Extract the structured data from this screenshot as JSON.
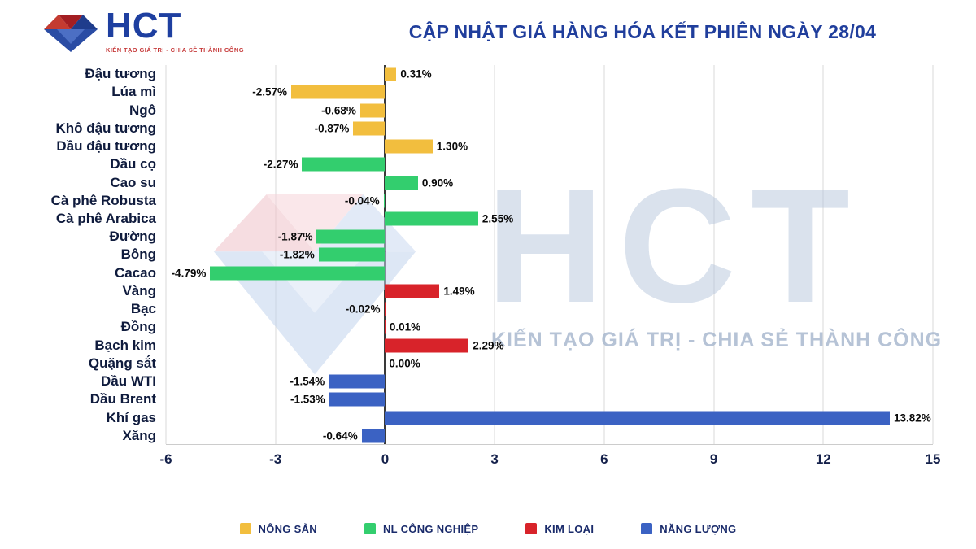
{
  "header": {
    "logo_text": "HCT",
    "logo_tagline": "KIẾN TẠO GIÁ TRỊ - CHIA SẺ THÀNH CÔNG",
    "title": "CẬP NHẬT GIÁ HÀNG HÓA KẾT PHIÊN NGÀY 28/04"
  },
  "watermark": {
    "text": "HCT",
    "tagline": "KIẾN TẠO GIÁ TRỊ - CHIA SẺ THÀNH CÔNG"
  },
  "chart_data": {
    "type": "bar",
    "orientation": "horizontal",
    "title": "CẬP NHẬT GIÁ HÀNG HÓA KẾT PHIÊN NGÀY 28/04",
    "unit": "%",
    "xlim": [
      -6,
      15
    ],
    "x_ticks": [
      "-6",
      "-3",
      "0",
      "3",
      "6",
      "9",
      "12",
      "15"
    ],
    "x_tick_values": [
      -6,
      -3,
      0,
      3,
      6,
      9,
      12,
      15
    ],
    "grid": true,
    "legend_position": "bottom",
    "group_colors": {
      "nong_san": "#F2BE3E",
      "cong_nghiep": "#33CE6E",
      "kim_loai": "#D8232A",
      "nang_luong": "#3B62C3"
    },
    "legend": [
      {
        "label": "NÔNG SẢN",
        "group": "nong_san"
      },
      {
        "label": "NL CÔNG NGHIỆP",
        "group": "cong_nghiep"
      },
      {
        "label": "KIM LOẠI",
        "group": "kim_loai"
      },
      {
        "label": "NĂNG LƯỢNG",
        "group": "nang_luong"
      }
    ],
    "rows": [
      {
        "label": "Đậu tương",
        "value": 0.31,
        "display": "0.31%",
        "group": "nong_san"
      },
      {
        "label": "Lúa mì",
        "value": -2.57,
        "display": "-2.57%",
        "group": "nong_san"
      },
      {
        "label": "Ngô",
        "value": -0.68,
        "display": "-0.68%",
        "group": "nong_san"
      },
      {
        "label": "Khô đậu tương",
        "value": -0.87,
        "display": "-0.87%",
        "group": "nong_san"
      },
      {
        "label": "Dầu đậu tương",
        "value": 1.3,
        "display": "1.30%",
        "group": "nong_san"
      },
      {
        "label": "Dầu cọ",
        "value": -2.27,
        "display": "-2.27%",
        "group": "cong_nghiep"
      },
      {
        "label": "Cao su",
        "value": 0.9,
        "display": "0.90%",
        "group": "cong_nghiep"
      },
      {
        "label": "Cà phê Robusta",
        "value": -0.04,
        "display": "-0.04%",
        "group": "cong_nghiep"
      },
      {
        "label": "Cà phê Arabica",
        "value": 2.55,
        "display": "2.55%",
        "group": "cong_nghiep"
      },
      {
        "label": "Đường",
        "value": -1.87,
        "display": "-1.87%",
        "group": "cong_nghiep"
      },
      {
        "label": "Bông",
        "value": -1.82,
        "display": "-1.82%",
        "group": "cong_nghiep"
      },
      {
        "label": "Cacao",
        "value": -4.79,
        "display": "-4.79%",
        "group": "cong_nghiep"
      },
      {
        "label": "Vàng",
        "value": 1.49,
        "display": "1.49%",
        "group": "kim_loai"
      },
      {
        "label": "Bạc",
        "value": -0.02,
        "display": "-0.02%",
        "group": "kim_loai"
      },
      {
        "label": "Đồng",
        "value": 0.01,
        "display": "0.01%",
        "group": "kim_loai"
      },
      {
        "label": "Bạch kim",
        "value": 2.29,
        "display": "2.29%",
        "group": "kim_loai"
      },
      {
        "label": "Quặng sắt",
        "value": 0.0,
        "display": "0.00%",
        "group": "kim_loai"
      },
      {
        "label": "Dầu WTI",
        "value": -1.54,
        "display": "-1.54%",
        "group": "nang_luong"
      },
      {
        "label": "Dầu Brent",
        "value": -1.53,
        "display": "-1.53%",
        "group": "nang_luong"
      },
      {
        "label": "Khí gas",
        "value": 13.82,
        "display": "13.82%",
        "group": "nang_luong"
      },
      {
        "label": "Xăng",
        "value": -0.64,
        "display": "-0.64%",
        "group": "nang_luong"
      }
    ]
  }
}
